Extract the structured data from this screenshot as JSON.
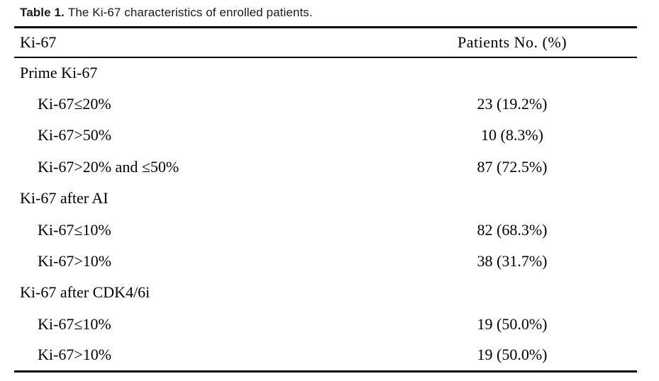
{
  "colors": {
    "background": "#ffffff",
    "text": "#000000",
    "rule": "#000000"
  },
  "caption": {
    "label": "Table 1.",
    "text": "The Ki-67 characteristics of enrolled patients."
  },
  "table": {
    "header": {
      "col1": "Ki-67",
      "col2": "Patients No. (%)"
    },
    "rows": [
      {
        "label": "Prime Ki-67",
        "value": "",
        "group": true
      },
      {
        "label": "Ki-67≤20%",
        "value": "23 (19.2%)",
        "group": false
      },
      {
        "label": "Ki-67>50%",
        "value": "10 (8.3%)",
        "group": false
      },
      {
        "label": "Ki-67>20% and ≤50%",
        "value": "87 (72.5%)",
        "group": false
      },
      {
        "label": "Ki-67 after AI",
        "value": "",
        "group": true
      },
      {
        "label": "Ki-67≤10%",
        "value": "82 (68.3%)",
        "group": false
      },
      {
        "label": "Ki-67>10%",
        "value": "38 (31.7%)",
        "group": false
      },
      {
        "label": "Ki-67 after CDK4/6i",
        "value": "",
        "group": true
      },
      {
        "label": "Ki-67≤10%",
        "value": "19 (50.0%)",
        "group": false
      },
      {
        "label": "Ki-67>10%",
        "value": "19 (50.0%)",
        "group": false
      }
    ]
  }
}
